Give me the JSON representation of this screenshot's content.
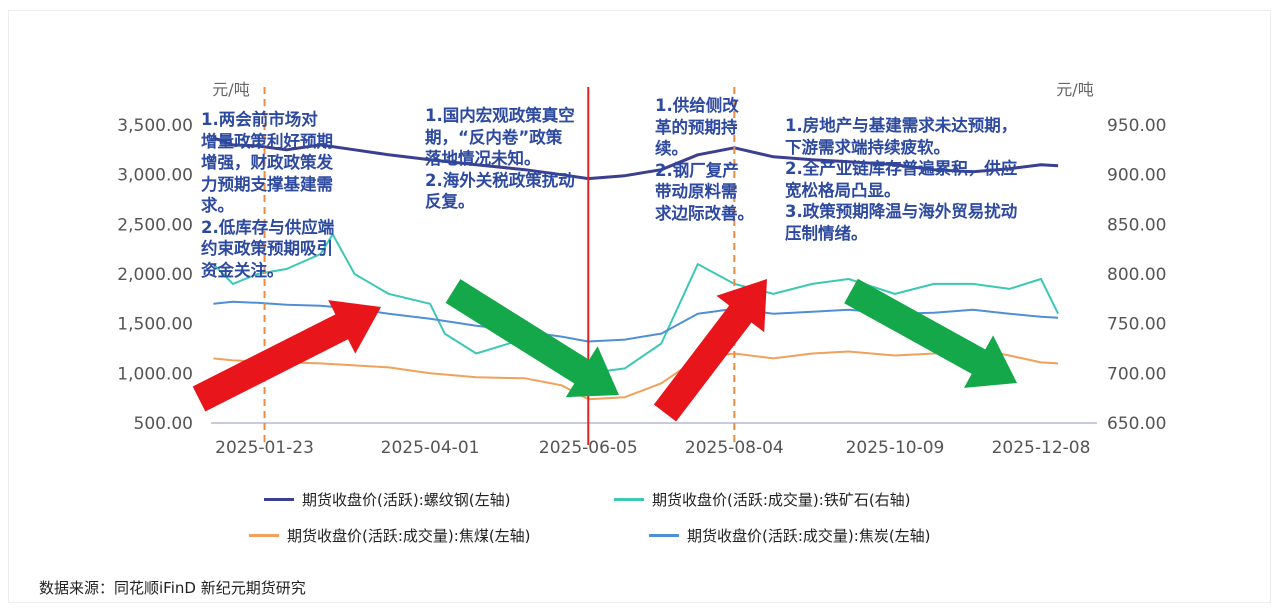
{
  "chart_data": {
    "type": "line",
    "left_unit": "元/吨",
    "right_unit": "元/吨",
    "left_axis": {
      "ticks": [
        "3,500.00",
        "3,000.00",
        "2,500.00",
        "2,000.00",
        "1,500.00",
        "1,000.00",
        "500.00"
      ],
      "range": [
        500,
        3500
      ]
    },
    "right_axis": {
      "ticks": [
        "950.00",
        "900.00",
        "850.00",
        "800.00",
        "750.00",
        "700.00",
        "650.00"
      ],
      "range": [
        650,
        950
      ]
    },
    "x_ticks": [
      "2025-01-23",
      "2025-04-01",
      "2025-06-05",
      "2025-08-04",
      "2025-10-09",
      "2025-12-08"
    ],
    "x_range": [
      "2025-01-01",
      "2025-12-31"
    ],
    "series": [
      {
        "name": "期货收盘价(活跃):螺纹钢(左轴)",
        "axis": "left",
        "color": "#3b3f8f",
        "points": [
          [
            "2025-01-02",
            3370
          ],
          [
            "2025-01-10",
            3300
          ],
          [
            "2025-01-20",
            3290
          ],
          [
            "2025-02-01",
            3250
          ],
          [
            "2025-02-15",
            3300
          ],
          [
            "2025-03-01",
            3250
          ],
          [
            "2025-03-15",
            3200
          ],
          [
            "2025-04-01",
            3150
          ],
          [
            "2025-04-20",
            3100
          ],
          [
            "2025-05-10",
            3050
          ],
          [
            "2025-05-25",
            3000
          ],
          [
            "2025-06-05",
            2960
          ],
          [
            "2025-06-20",
            2990
          ],
          [
            "2025-07-05",
            3050
          ],
          [
            "2025-07-20",
            3200
          ],
          [
            "2025-08-04",
            3270
          ],
          [
            "2025-08-20",
            3180
          ],
          [
            "2025-09-05",
            3150
          ],
          [
            "2025-09-20",
            3130
          ],
          [
            "2025-10-09",
            3100
          ],
          [
            "2025-10-25",
            3050
          ],
          [
            "2025-11-10",
            3030
          ],
          [
            "2025-11-25",
            3060
          ],
          [
            "2025-12-08",
            3100
          ],
          [
            "2025-12-15",
            3090
          ]
        ]
      },
      {
        "name": "期货收盘价(活跃:成交量):铁矿石(右轴)",
        "axis": "right",
        "color": "#3cc8b4",
        "points": [
          [
            "2025-01-02",
            810
          ],
          [
            "2025-01-10",
            790
          ],
          [
            "2025-01-20",
            800
          ],
          [
            "2025-02-01",
            805
          ],
          [
            "2025-02-15",
            820
          ],
          [
            "2025-02-20",
            840
          ],
          [
            "2025-03-01",
            800
          ],
          [
            "2025-03-15",
            780
          ],
          [
            "2025-04-01",
            770
          ],
          [
            "2025-04-07",
            740
          ],
          [
            "2025-04-20",
            720
          ],
          [
            "2025-05-10",
            735
          ],
          [
            "2025-05-25",
            715
          ],
          [
            "2025-06-05",
            700
          ],
          [
            "2025-06-20",
            705
          ],
          [
            "2025-07-05",
            730
          ],
          [
            "2025-07-20",
            810
          ],
          [
            "2025-08-04",
            790
          ],
          [
            "2025-08-20",
            780
          ],
          [
            "2025-09-05",
            790
          ],
          [
            "2025-09-20",
            795
          ],
          [
            "2025-10-09",
            780
          ],
          [
            "2025-10-25",
            790
          ],
          [
            "2025-11-10",
            790
          ],
          [
            "2025-11-25",
            785
          ],
          [
            "2025-12-08",
            795
          ],
          [
            "2025-12-15",
            760
          ]
        ]
      },
      {
        "name": "期货收盘价(活跃:成交量):焦煤(左轴)",
        "axis": "left",
        "color": "#f0a15a",
        "points": [
          [
            "2025-01-02",
            1150
          ],
          [
            "2025-01-10",
            1130
          ],
          [
            "2025-01-20",
            1120
          ],
          [
            "2025-02-01",
            1110
          ],
          [
            "2025-02-15",
            1100
          ],
          [
            "2025-03-01",
            1080
          ],
          [
            "2025-03-15",
            1060
          ],
          [
            "2025-04-01",
            1000
          ],
          [
            "2025-04-20",
            960
          ],
          [
            "2025-05-10",
            950
          ],
          [
            "2025-05-25",
            880
          ],
          [
            "2025-06-05",
            740
          ],
          [
            "2025-06-20",
            760
          ],
          [
            "2025-07-05",
            900
          ],
          [
            "2025-07-20",
            1150
          ],
          [
            "2025-08-04",
            1200
          ],
          [
            "2025-08-20",
            1150
          ],
          [
            "2025-09-05",
            1200
          ],
          [
            "2025-09-20",
            1220
          ],
          [
            "2025-10-09",
            1180
          ],
          [
            "2025-10-25",
            1200
          ],
          [
            "2025-11-10",
            1250
          ],
          [
            "2025-11-25",
            1180
          ],
          [
            "2025-12-08",
            1110
          ],
          [
            "2025-12-15",
            1100
          ]
        ]
      },
      {
        "name": "期货收盘价(活跃:成交量):焦炭(左轴)",
        "axis": "left",
        "color": "#4f8fd6",
        "points": [
          [
            "2025-01-02",
            1700
          ],
          [
            "2025-01-10",
            1720
          ],
          [
            "2025-01-20",
            1710
          ],
          [
            "2025-02-01",
            1690
          ],
          [
            "2025-02-15",
            1680
          ],
          [
            "2025-03-01",
            1650
          ],
          [
            "2025-03-15",
            1600
          ],
          [
            "2025-04-01",
            1550
          ],
          [
            "2025-04-20",
            1480
          ],
          [
            "2025-05-10",
            1420
          ],
          [
            "2025-05-25",
            1370
          ],
          [
            "2025-06-05",
            1320
          ],
          [
            "2025-06-20",
            1340
          ],
          [
            "2025-07-05",
            1400
          ],
          [
            "2025-07-20",
            1600
          ],
          [
            "2025-08-04",
            1650
          ],
          [
            "2025-08-20",
            1600
          ],
          [
            "2025-09-05",
            1620
          ],
          [
            "2025-09-20",
            1640
          ],
          [
            "2025-10-09",
            1600
          ],
          [
            "2025-10-25",
            1610
          ],
          [
            "2025-11-10",
            1640
          ],
          [
            "2025-11-25",
            1600
          ],
          [
            "2025-12-08",
            1570
          ],
          [
            "2025-12-15",
            1560
          ]
        ]
      }
    ],
    "vlines": [
      {
        "date": "2025-01-23",
        "style": "dashed",
        "color": "#f08a3c"
      },
      {
        "date": "2025-06-05",
        "style": "solid",
        "color": "#e52020"
      },
      {
        "date": "2025-08-04",
        "style": "dashed",
        "color": "#f08a3c"
      }
    ],
    "arrows": [
      {
        "direction": "up",
        "color": "#e8161b"
      },
      {
        "direction": "down",
        "color": "#14a84a"
      },
      {
        "direction": "up",
        "color": "#e8161b"
      },
      {
        "direction": "down",
        "color": "#14a84a"
      }
    ],
    "legend_placement": "bottom"
  },
  "annotations": [
    "1.两会前市场对\n增量政策利好预期\n增强，财政政策发\n力预期支撑基建需\n求。\n2.低库存与供应端\n约束政策预期吸引\n资金关注。",
    "1.国内宏观政策真空\n期，“反内卷”政策\n落地情况未知。\n2.海外关税政策扰动\n反复。",
    "1.供给侧改\n革的预期持\n续。\n2.钢厂复产\n带动原料需\n求边际改善。",
    "1.房地产与基建需求未达预期，\n下游需求端持续疲软。\n2.全产业链库存普遍累积，供应\n宽松格局凸显。\n3.政策预期降温与海外贸易扰动\n压制情绪。"
  ],
  "legend": [
    "期货收盘价(活跃):螺纹钢(左轴)",
    "期货收盘价(活跃:成交量):铁矿石(右轴)",
    "期货收盘价(活跃:成交量):焦煤(左轴)",
    "期货收盘价(活跃:成交量):焦炭(左轴)"
  ],
  "source": "数据来源：同花顺iFinD 新纪元期货研究"
}
